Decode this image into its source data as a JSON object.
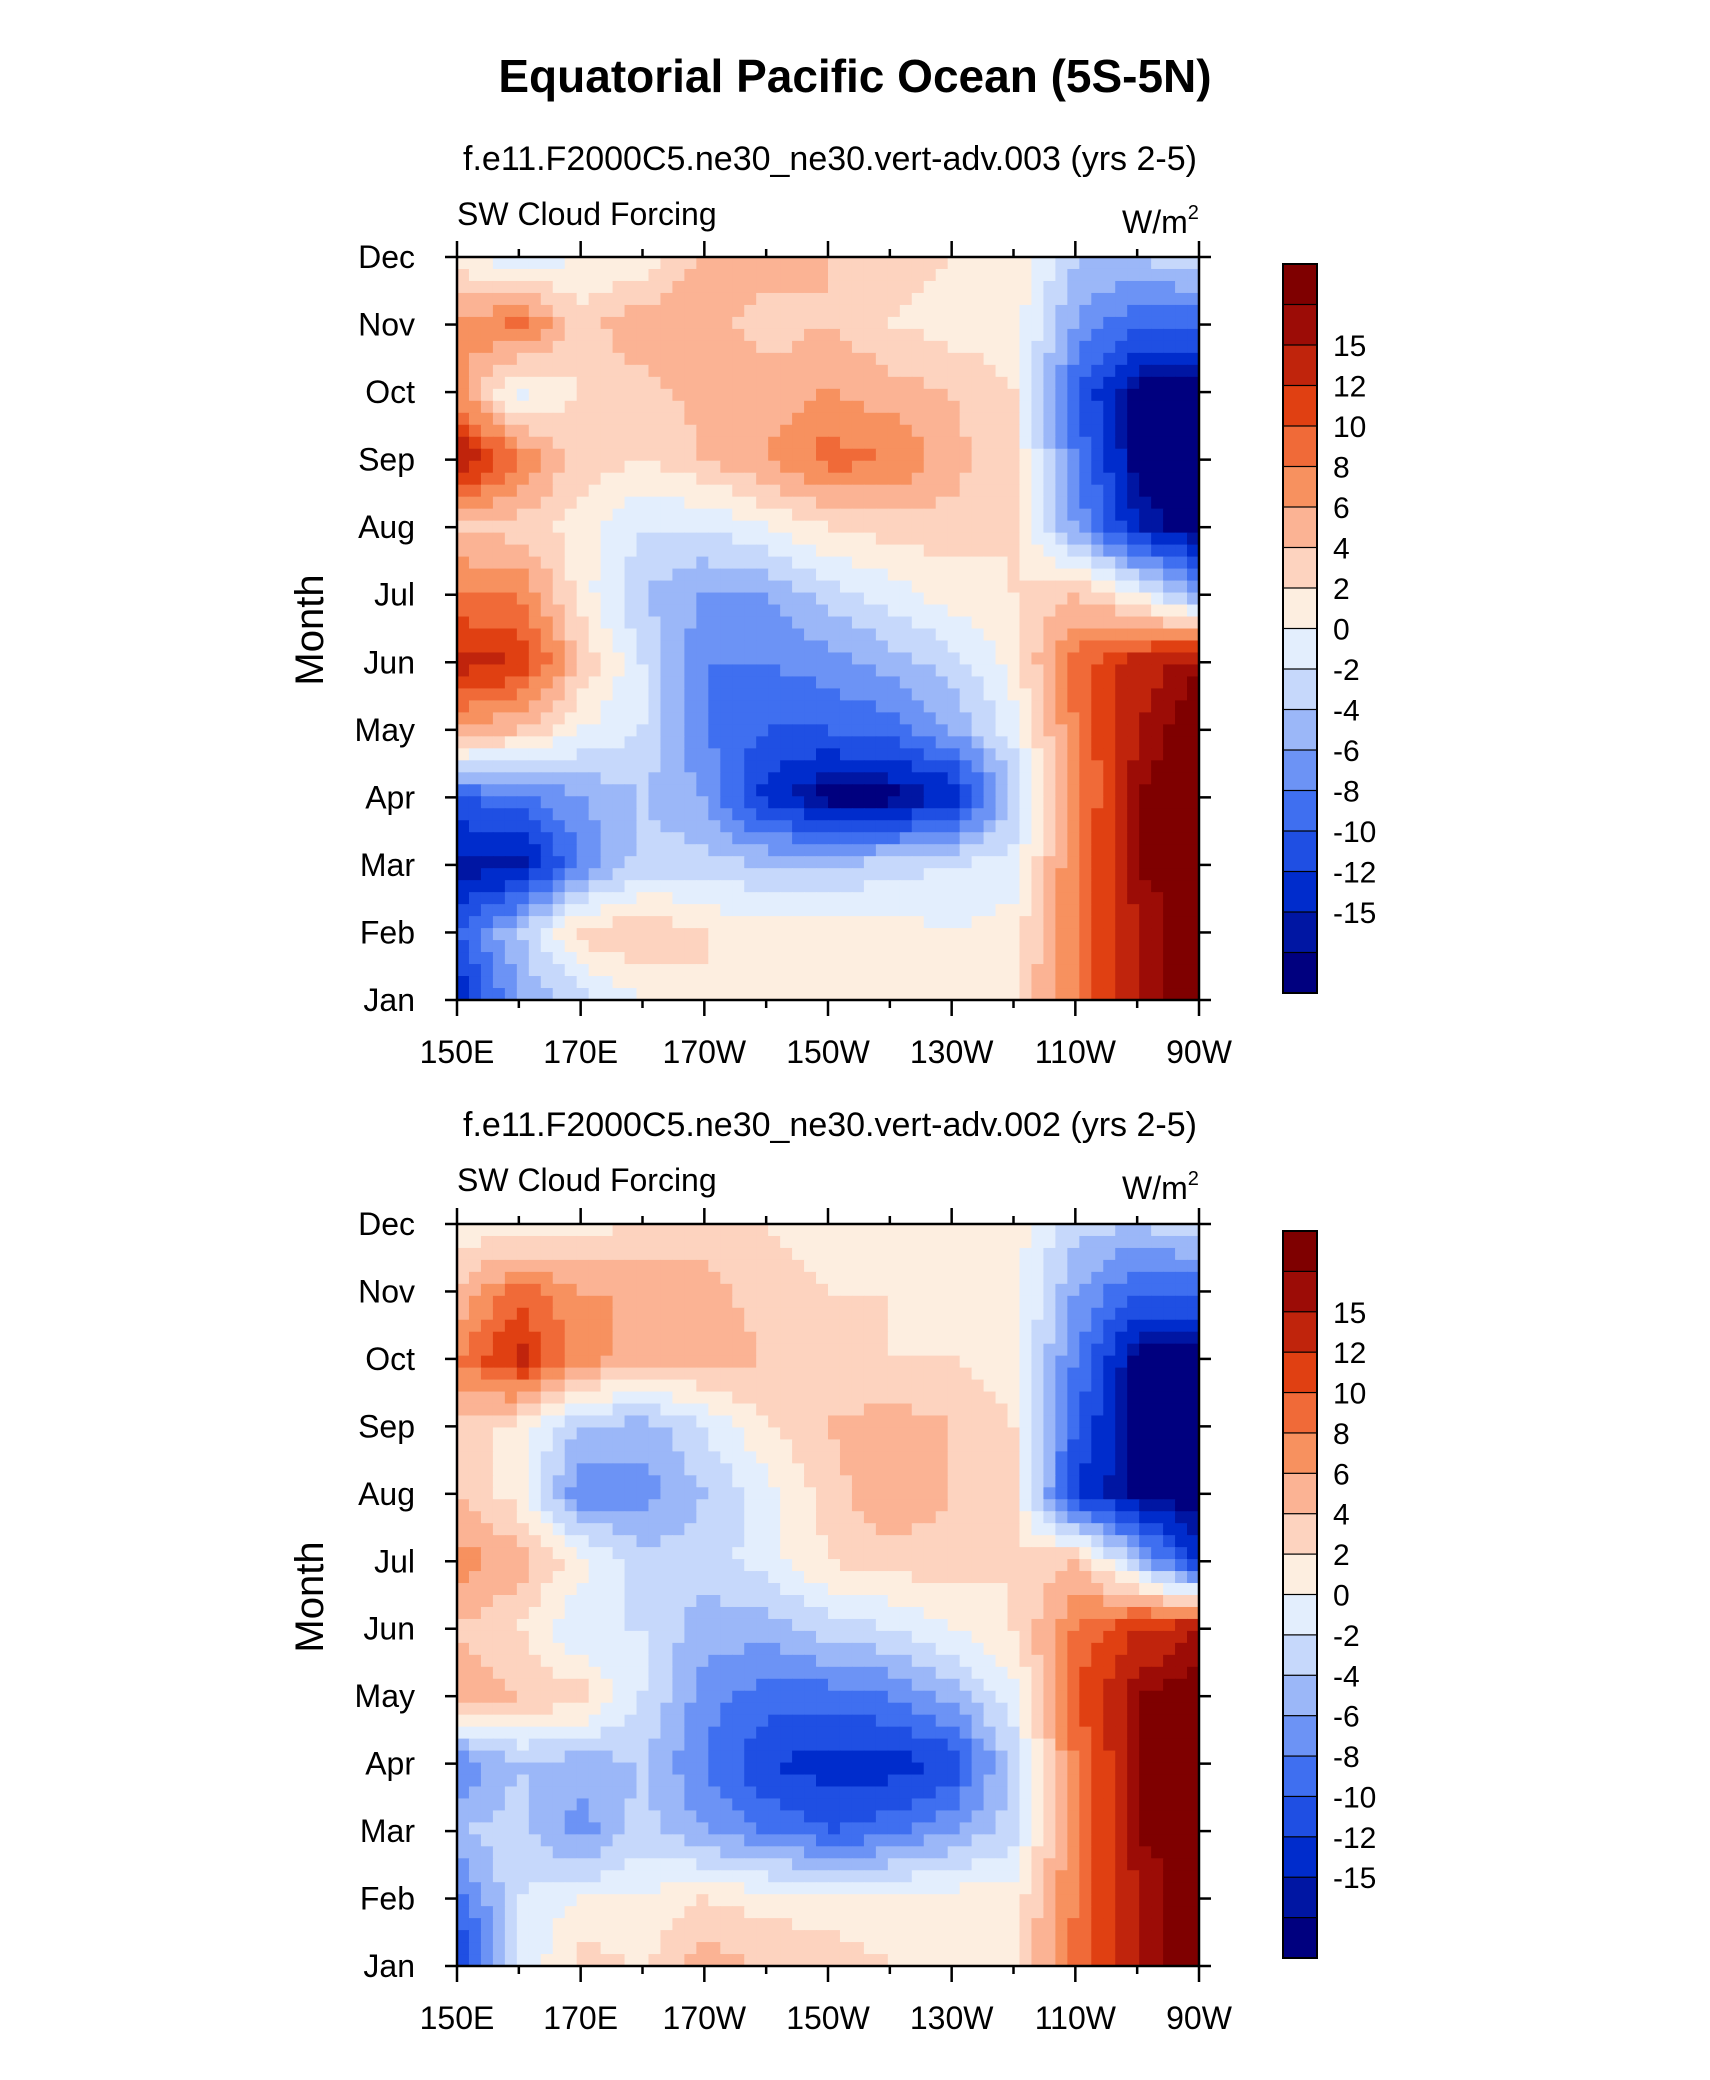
{
  "figure_title": "Equatorial Pacific Ocean (5S-5N)",
  "colors": [
    "#00007f",
    "#0016a3",
    "#002ccc",
    "#1f4fe3",
    "#3f6ff0",
    "#6c93f5",
    "#9bb7f8",
    "#c6d8fb",
    "#e3eefd",
    "#fdeee0",
    "#fdd3bf",
    "#fbb394",
    "#f7915f",
    "#f06a38",
    "#e04012",
    "#c0240c",
    "#9c0c06",
    "#7f0000"
  ],
  "chart_data": [
    {
      "type": "heatmap",
      "subtitle": "f.e11.F2000C5.ne30_ne30.vert-adv.003 (yrs 2-5)",
      "left_label": "SW Cloud Forcing",
      "units": "W/m",
      "units_sup": "2",
      "ylabel": "Month",
      "x_ticks": [
        "150E",
        "170E",
        "170W",
        "150W",
        "130W",
        "110W",
        "90W"
      ],
      "x_range_deg_east": [
        150,
        270
      ],
      "months": [
        "Jan",
        "Feb",
        "Mar",
        "Apr",
        "May",
        "Jun",
        "Jul",
        "Aug",
        "Sep",
        "Oct",
        "Nov",
        "Dec"
      ],
      "colorbar_labels": [
        "15",
        "12",
        "10",
        "8",
        "6",
        "4",
        "2",
        "0",
        "-2",
        "-4",
        "-6",
        "-8",
        "-10",
        "-12",
        "-15"
      ],
      "levels": [
        -15,
        -14,
        -12,
        -10,
        -8,
        -6,
        -4,
        -2,
        0,
        2,
        4,
        6,
        8,
        10,
        12,
        14,
        15
      ],
      "grid_lon": [
        150,
        160,
        170,
        180,
        190,
        200,
        210,
        220,
        230,
        240,
        250,
        260,
        270
      ],
      "grid_month": [
        1,
        2,
        3,
        4,
        5,
        6,
        7,
        8,
        9,
        10,
        11,
        12
      ],
      "values": [
        [
          -14,
          -6,
          -3,
          0,
          2,
          1,
          1,
          1,
          1,
          2,
          8,
          14,
          16
        ],
        [
          -10,
          -4,
          3,
          4,
          2,
          1,
          1,
          1,
          0,
          1,
          8,
          14,
          16
        ],
        [
          -15,
          -15,
          -8,
          -3,
          -3,
          -4,
          -4,
          -3,
          -2,
          -1,
          8,
          15,
          16
        ],
        [
          -10,
          -9,
          -6,
          -4,
          -6,
          -13,
          -16,
          -16,
          -14,
          -4,
          7,
          15,
          16
        ],
        [
          6,
          4,
          0,
          -2,
          -8,
          -10,
          -10,
          -9,
          -6,
          -1,
          8,
          14,
          16
        ],
        [
          13,
          12,
          4,
          -2,
          -8,
          -8,
          -7,
          -5,
          -3,
          1,
          9,
          13,
          15
        ],
        [
          8,
          8,
          1,
          -4,
          -6,
          -6,
          -3,
          -1,
          1,
          2,
          4,
          0,
          -6
        ],
        [
          4,
          3,
          1,
          -2,
          -2,
          0,
          2,
          3,
          3,
          2,
          -6,
          -14,
          -16
        ],
        [
          15,
          8,
          3,
          2,
          4,
          6,
          9,
          8,
          5,
          2,
          -8,
          -16,
          -16
        ],
        [
          7,
          -1,
          2,
          3,
          5,
          5,
          6,
          5,
          4,
          2,
          -10,
          -16,
          -16
        ],
        [
          6,
          9,
          3,
          6,
          5,
          3,
          4,
          2,
          1,
          1,
          -6,
          -10,
          -10
        ],
        [
          1,
          -2,
          0,
          0,
          5,
          5,
          4,
          3,
          2,
          2,
          -4,
          -4,
          -2
        ]
      ]
    },
    {
      "type": "heatmap",
      "subtitle": "f.e11.F2000C5.ne30_ne30.vert-adv.002 (yrs 2-5)",
      "left_label": "SW Cloud Forcing",
      "units": "W/m",
      "units_sup": "2",
      "ylabel": "Month",
      "x_ticks": [
        "150E",
        "170E",
        "170W",
        "150W",
        "130W",
        "110W",
        "90W"
      ],
      "x_range_deg_east": [
        150,
        270
      ],
      "months": [
        "Jan",
        "Feb",
        "Mar",
        "Apr",
        "May",
        "Jun",
        "Jul",
        "Aug",
        "Sep",
        "Oct",
        "Nov",
        "Dec"
      ],
      "colorbar_labels": [
        "15",
        "12",
        "10",
        "8",
        "6",
        "4",
        "2",
        "0",
        "-2",
        "-4",
        "-6",
        "-8",
        "-10",
        "-12",
        "-15"
      ],
      "levels": [
        -15,
        -14,
        -12,
        -10,
        -8,
        -6,
        -4,
        -2,
        0,
        2,
        4,
        6,
        8,
        10,
        12,
        14,
        15
      ],
      "grid_lon": [
        150,
        160,
        170,
        180,
        190,
        200,
        210,
        220,
        230,
        240,
        250,
        260,
        270
      ],
      "grid_month": [
        1,
        2,
        3,
        4,
        5,
        6,
        7,
        8,
        9,
        10,
        11,
        12
      ],
      "values": [
        [
          -13,
          -2,
          3,
          2,
          5,
          4,
          3,
          2,
          2,
          2,
          9,
          14,
          16
        ],
        [
          -9,
          -2,
          0,
          0,
          2,
          1,
          1,
          1,
          1,
          1,
          8,
          14,
          16
        ],
        [
          -4,
          -3,
          -7,
          -3,
          -6,
          -8,
          -10,
          -9,
          -6,
          -3,
          8,
          15,
          16
        ],
        [
          -8,
          -4,
          -5,
          -4,
          -8,
          -12,
          -13,
          -13,
          -12,
          -3,
          8,
          15,
          16
        ],
        [
          5,
          4,
          3,
          -2,
          -7,
          -9,
          -9,
          -8,
          -5,
          -1,
          10,
          15,
          16
        ],
        [
          4,
          2,
          -2,
          -2,
          -5,
          -5,
          -3,
          -2,
          0,
          2,
          8,
          12,
          14
        ],
        [
          7,
          5,
          1,
          -3,
          -3,
          -1,
          2,
          3,
          3,
          2,
          4,
          -4,
          -14
        ],
        [
          4,
          1,
          -8,
          -7,
          -4,
          -1,
          3,
          6,
          4,
          2,
          -12,
          -16,
          -16
        ],
        [
          3,
          1,
          -4,
          -5,
          -2,
          2,
          4,
          5,
          4,
          2,
          -10,
          -16,
          -16
        ],
        [
          8,
          13,
          7,
          5,
          5,
          4,
          3,
          2,
          2,
          1,
          -8,
          -16,
          -16
        ],
        [
          4,
          9,
          6,
          6,
          5,
          3,
          2,
          2,
          1,
          1,
          -6,
          -10,
          -10
        ],
        [
          1,
          0,
          1,
          2,
          3,
          2,
          1,
          1,
          1,
          1,
          -3,
          -4,
          -2
        ]
      ]
    }
  ]
}
